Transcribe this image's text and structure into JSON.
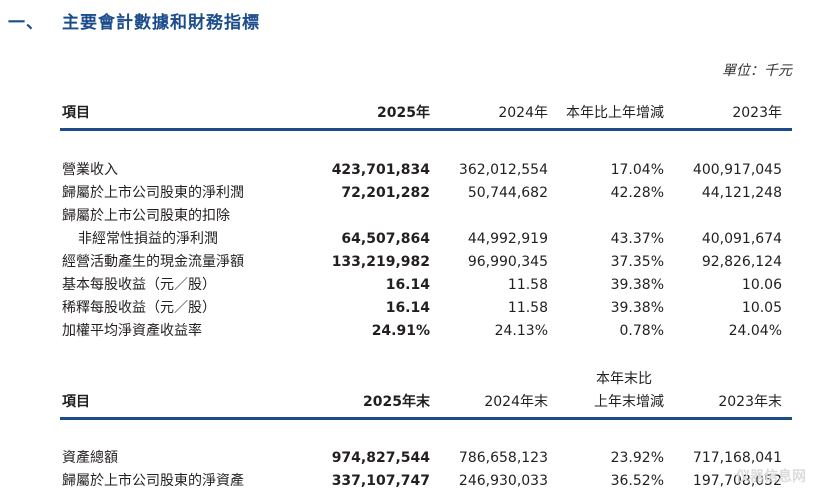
{
  "section": {
    "number": "一、",
    "title": "主要會計數據和財務指標",
    "unit": "單位：千元"
  },
  "table1": {
    "headers": [
      "項目",
      "2025年",
      "2024年",
      "本年比上年增減",
      "2023年"
    ],
    "rows": [
      {
        "label": "營業收入",
        "v2025": "423,701,834",
        "v2024": "362,012,554",
        "change": "17.04%",
        "v2023": "400,917,045"
      },
      {
        "label": "歸屬於上市公司股東的淨利潤",
        "v2025": "72,201,282",
        "v2024": "50,744,682",
        "change": "42.28%",
        "v2023": "44,121,248"
      },
      {
        "label": "歸屬於上市公司股東的扣除",
        "v2025": "",
        "v2024": "",
        "change": "",
        "v2023": ""
      },
      {
        "label": "非經常性損益的淨利潤",
        "v2025": "64,507,864",
        "v2024": "44,992,919",
        "change": "43.37%",
        "v2023": "40,091,674"
      },
      {
        "label": "經營活動產生的現金流量淨額",
        "v2025": "133,219,982",
        "v2024": "96,990,345",
        "change": "37.35%",
        "v2023": "92,826,124"
      },
      {
        "label": "基本每股收益（元／股）",
        "v2025": "16.14",
        "v2024": "11.58",
        "change": "39.38%",
        "v2023": "10.06"
      },
      {
        "label": "稀釋每股收益（元／股）",
        "v2025": "16.14",
        "v2024": "11.58",
        "change": "39.38%",
        "v2023": "10.05"
      },
      {
        "label": "加權平均淨資產收益率",
        "v2025": "24.91%",
        "v2024": "24.13%",
        "change": "0.78%",
        "v2023": "24.04%"
      }
    ]
  },
  "table2": {
    "headers": [
      "項目",
      "2025年末",
      "2024年末",
      "本年末比",
      "上年末增減",
      "2023年末"
    ],
    "rows": [
      {
        "label": "資產總額",
        "v2025": "974,827,544",
        "v2024": "786,658,123",
        "change": "23.92%",
        "v2023": "717,168,041"
      },
      {
        "label": "歸屬於上市公司股東的淨資產",
        "v2025": "337,107,747",
        "v2024": "246,930,033",
        "change": "36.52%",
        "v2023": "197,708,052"
      }
    ]
  },
  "watermark": "仪器信息网"
}
